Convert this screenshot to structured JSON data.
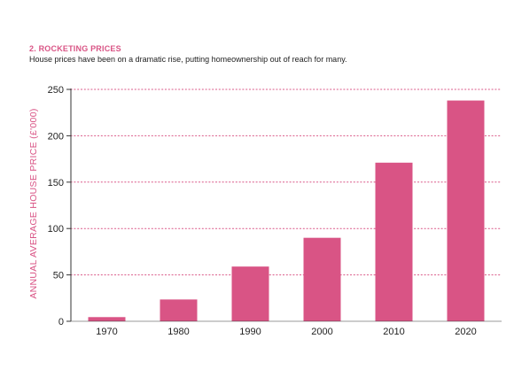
{
  "heading": "2. ROCKETING PRICES",
  "subtitle": "House prices have been on a dramatic rise, putting homeownership out of reach for many.",
  "colors": {
    "bar": "#d95485",
    "heading": "#d95485",
    "grid": "#d95485",
    "axis": "#333333"
  },
  "chart_data": {
    "type": "bar",
    "categories": [
      "1970",
      "1980",
      "1990",
      "2000",
      "2010",
      "2020"
    ],
    "values": [
      4.5,
      23.5,
      59,
      90,
      171,
      238
    ],
    "title": "",
    "xlabel": "",
    "ylabel": "ANNUAL AVERAGE HOUSE PRICE (£'000)",
    "ylim": [
      0,
      250
    ],
    "yticks": [
      0,
      50,
      100,
      150,
      200,
      250
    ],
    "grid": "horizontal dotted",
    "legend": "none"
  }
}
